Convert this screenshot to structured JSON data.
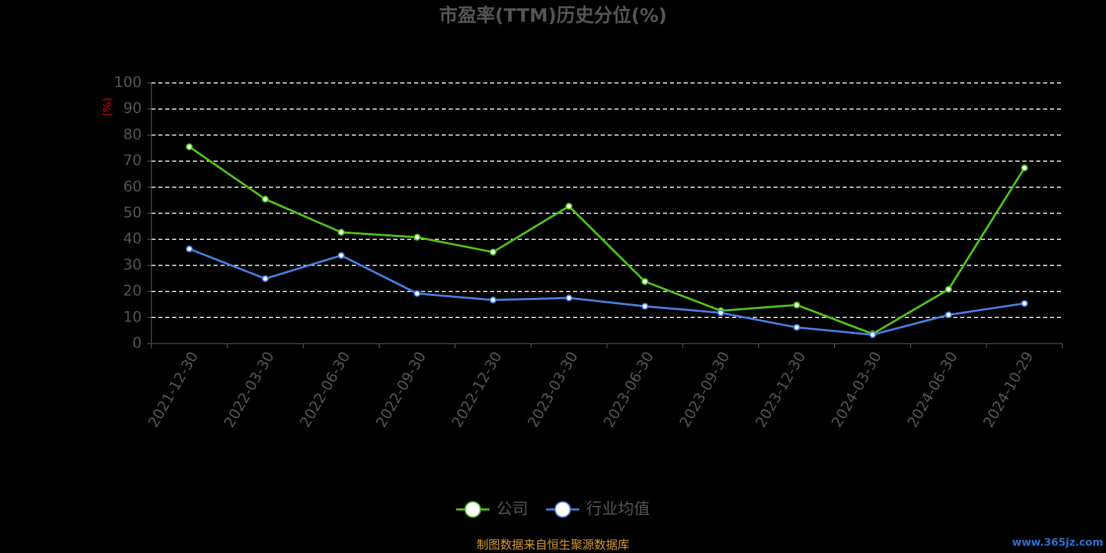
{
  "chart_data": {
    "type": "line",
    "title": "市盈率(TTM)历史分位(%)",
    "y_label": "(%)",
    "categories": [
      "2021-12-30",
      "2022-03-30",
      "2022-06-30",
      "2022-09-30",
      "2022-12-30",
      "2023-03-30",
      "2023-06-30",
      "2023-09-30",
      "2023-12-30",
      "2024-03-30",
      "2024-06-30",
      "2024-10-29"
    ],
    "series": [
      {
        "name": "公司",
        "color": "#52c41a",
        "values": [
          75.5,
          55.4,
          42.7,
          40.8,
          35.1,
          52.7,
          23.8,
          12.6,
          14.8,
          3.7,
          20.8,
          67.4
        ]
      },
      {
        "name": "行业均值",
        "color": "#4a7fe0",
        "values": [
          36.3,
          24.9,
          33.8,
          19.2,
          16.7,
          17.5,
          14.3,
          11.8,
          6.2,
          3.4,
          11.0,
          15.4
        ]
      }
    ],
    "ylim": [
      0,
      100
    ],
    "yticks": [
      0,
      10,
      20,
      30,
      40,
      50,
      60,
      70,
      80,
      90,
      100
    ],
    "grid": true,
    "source": "制图数据来自恒生聚源数据库",
    "watermark": "www.365jz.com"
  }
}
